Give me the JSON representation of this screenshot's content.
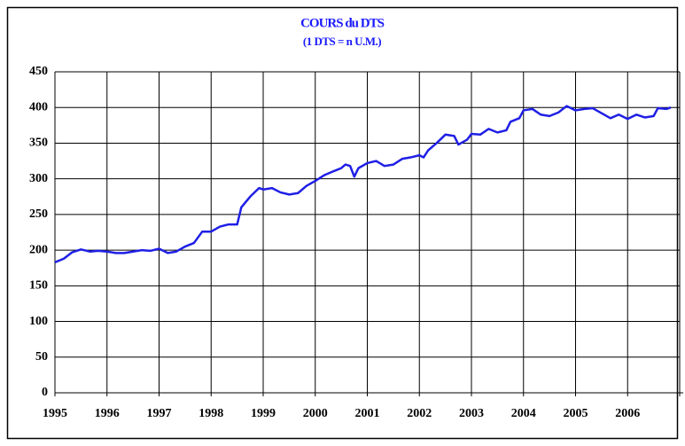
{
  "chart_data": {
    "type": "line",
    "title": "COURS du DTS",
    "subtitle": "(1 DTS = n U.M.)",
    "x": [
      1995.0,
      1995.17,
      1995.33,
      1995.5,
      1995.67,
      1995.83,
      1996.0,
      1996.17,
      1996.33,
      1996.5,
      1996.67,
      1996.83,
      1997.0,
      1997.17,
      1997.33,
      1997.5,
      1997.67,
      1997.83,
      1998.0,
      1998.17,
      1998.33,
      1998.5,
      1998.58,
      1998.75,
      1998.92,
      1999.0,
      1999.17,
      1999.33,
      1999.5,
      1999.67,
      1999.83,
      2000.0,
      2000.17,
      2000.33,
      2000.5,
      2000.58,
      2000.67,
      2000.75,
      2000.83,
      2001.0,
      2001.17,
      2001.33,
      2001.5,
      2001.67,
      2001.83,
      2002.0,
      2002.08,
      2002.17,
      2002.33,
      2002.5,
      2002.67,
      2002.75,
      2002.92,
      2003.0,
      2003.17,
      2003.33,
      2003.5,
      2003.67,
      2003.75,
      2003.92,
      2004.0,
      2004.17,
      2004.33,
      2004.5,
      2004.67,
      2004.83,
      2005.0,
      2005.17,
      2005.33,
      2005.5,
      2005.67,
      2005.83,
      2006.0,
      2006.17,
      2006.33,
      2006.5,
      2006.58,
      2006.75,
      2006.83
    ],
    "series": [
      {
        "name": "DTS",
        "color": "#1f1fe6",
        "values": [
          183,
          188,
          197,
          201,
          198,
          199,
          198,
          196,
          196,
          198,
          200,
          199,
          202,
          196,
          198,
          205,
          210,
          226,
          226,
          233,
          236,
          236,
          260,
          275,
          287,
          285,
          287,
          281,
          278,
          280,
          290,
          297,
          305,
          310,
          315,
          320,
          318,
          303,
          315,
          322,
          325,
          318,
          320,
          328,
          330,
          333,
          330,
          340,
          350,
          362,
          360,
          348,
          355,
          363,
          362,
          370,
          365,
          368,
          380,
          385,
          396,
          398,
          390,
          388,
          393,
          402,
          396,
          398,
          399,
          392,
          385,
          390,
          384,
          390,
          386,
          388,
          399,
          398,
          400
        ]
      }
    ],
    "xlim": [
      1995,
      2007
    ],
    "xticks": [
      1995,
      1996,
      1997,
      1998,
      1999,
      2000,
      2001,
      2002,
      2003,
      2004,
      2005,
      2006
    ],
    "ylim": [
      0,
      450
    ],
    "yticks": [
      0,
      50,
      100,
      150,
      200,
      250,
      300,
      350,
      400,
      450
    ],
    "grid": true
  }
}
